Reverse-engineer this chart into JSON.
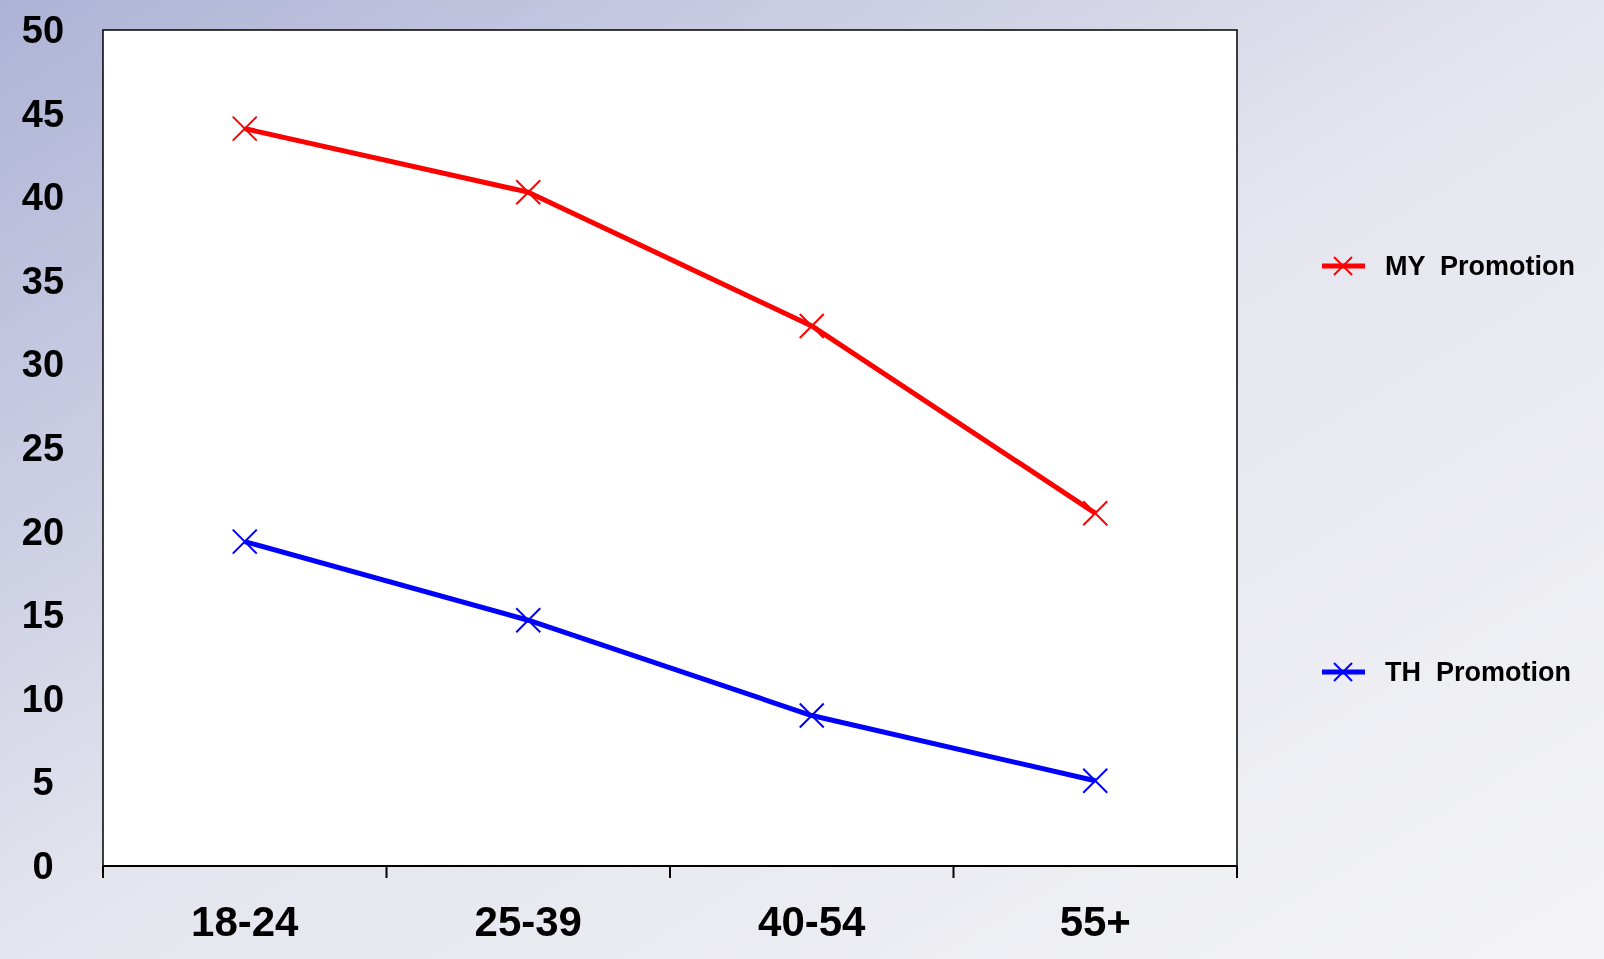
{
  "chart_data": {
    "type": "line",
    "categories": [
      "18-24",
      "25-39",
      "40-54",
      "55+"
    ],
    "series": [
      {
        "name": "MY  Promotion",
        "color": "#ff0000",
        "values": [
          44.1,
          40.3,
          32.3,
          21.1
        ]
      },
      {
        "name": "TH  Promotion",
        "color": "#0000ff",
        "values": [
          19.4,
          14.7,
          9.0,
          5.1
        ]
      }
    ],
    "ylim": [
      0,
      50
    ],
    "yticks": [
      0,
      5,
      10,
      15,
      20,
      25,
      30,
      35,
      40,
      45,
      50
    ],
    "grid": false,
    "legend": "right",
    "marker": "cross",
    "line_style": "solid"
  }
}
